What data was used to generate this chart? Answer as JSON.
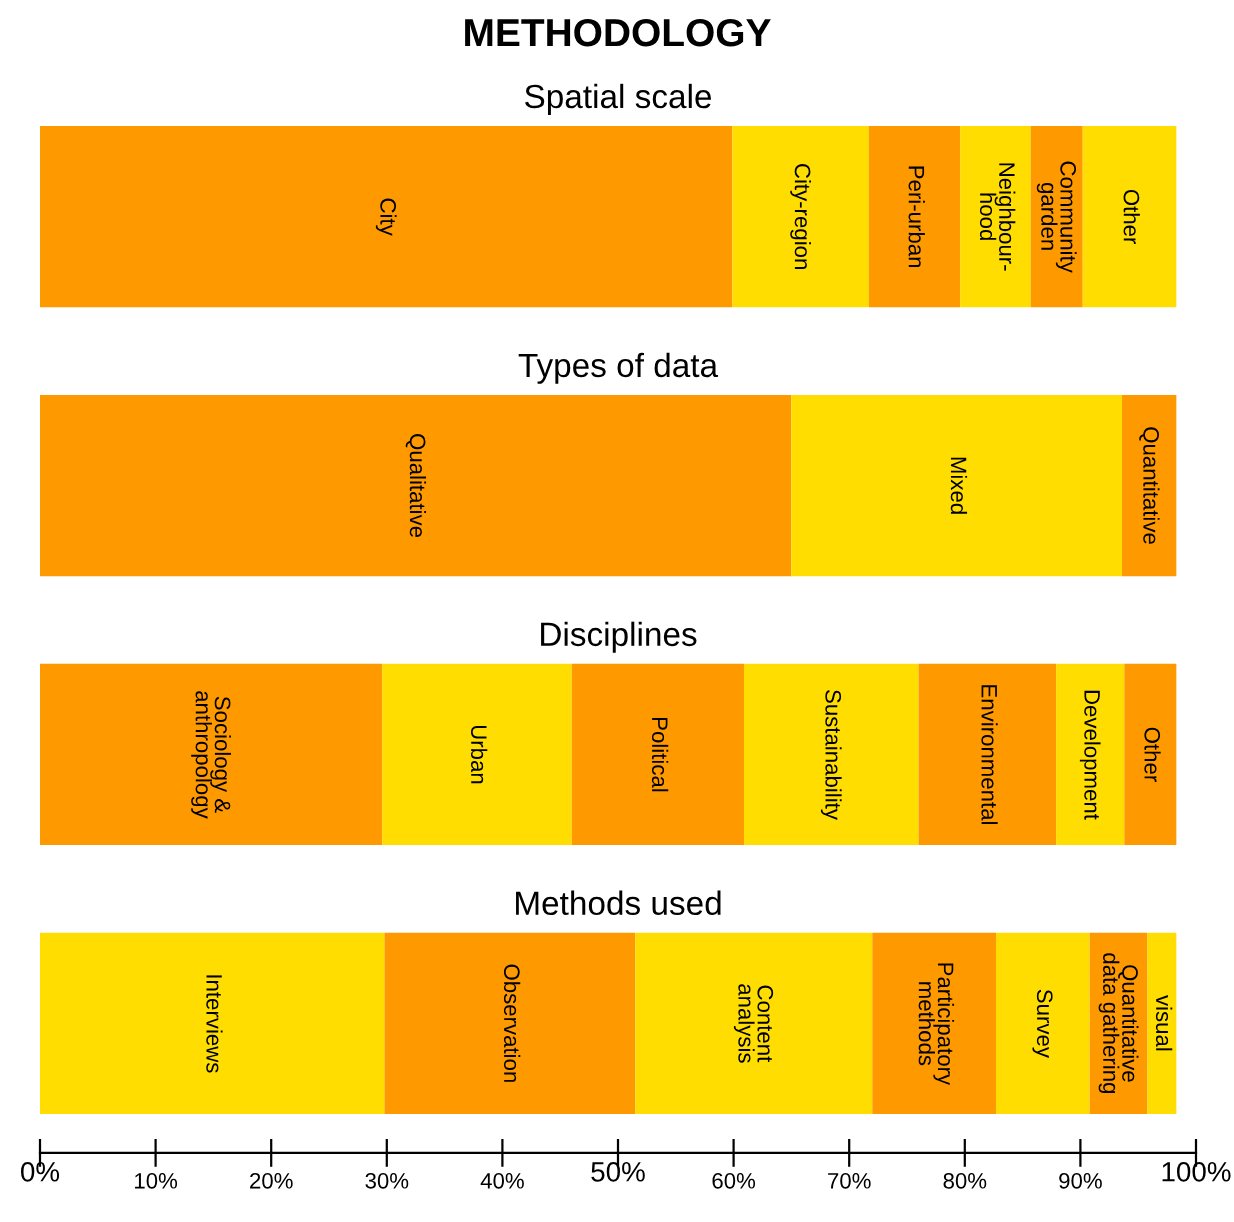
{
  "chart_data": {
    "type": "bar",
    "title": "METHODOLOGY",
    "orientation": "horizontal",
    "stacked": true,
    "categories": [
      null,
      null,
      null,
      null
    ],
    "annotations": [
      "Spatial scale",
      "Types of data",
      "Disciplines",
      "Methods used"
    ],
    "xlim": [
      0,
      100
    ],
    "xticks": [
      {
        "value": 0,
        "label": "0%"
      },
      {
        "value": 10,
        "label": "10%"
      },
      {
        "value": 20,
        "label": "20%"
      },
      {
        "value": 30,
        "label": "30%"
      },
      {
        "value": 40,
        "label": "40%"
      },
      {
        "value": 50,
        "label": "50%"
      },
      {
        "value": 60,
        "label": "60%"
      },
      {
        "value": 70,
        "label": "70%"
      },
      {
        "value": 80,
        "label": "80%"
      },
      {
        "value": 90,
        "label": "90%"
      },
      {
        "value": 100,
        "label": "100%"
      }
    ],
    "series": [
      {
        "name": "City",
        "color": "#ff9900",
        "values": [
          59.9,
          null,
          null,
          null
        ]
      },
      {
        "name": "City-region",
        "color": "#ffdd00",
        "values": [
          11.8,
          null,
          null,
          null
        ]
      },
      {
        "name": "Peri-urban",
        "color": "#ff9900",
        "values": [
          7.9,
          null,
          null,
          null
        ]
      },
      {
        "name": "Neighbour-\nhood",
        "color": "#ffdd00",
        "values": [
          6.1,
          null,
          null,
          null
        ]
      },
      {
        "name": "Community\ngarden",
        "color": "#ff9900",
        "values": [
          4.5,
          null,
          null,
          null
        ]
      },
      {
        "name": "Other",
        "color": "#ffdd00",
        "values": [
          8.1,
          null,
          null,
          null
        ]
      },
      {
        "name": "Qualitative",
        "color": "#ff9900",
        "values": [
          null,
          65.0,
          null,
          null
        ]
      },
      {
        "name": "Mixed",
        "color": "#ffdd00",
        "values": [
          null,
          28.6,
          null,
          null
        ]
      },
      {
        "name": "Quantitative",
        "color": "#ff9900",
        "values": [
          null,
          4.7,
          null,
          null
        ]
      },
      {
        "name": "Sociology &\nanthropology",
        "color": "#ff9900",
        "values": [
          null,
          null,
          29.6,
          null
        ]
      },
      {
        "name": "Urban",
        "color": "#ffdd00",
        "values": [
          null,
          null,
          16.4,
          null
        ]
      },
      {
        "name": "Political",
        "color": "#ff9900",
        "values": [
          null,
          null,
          14.9,
          null
        ]
      },
      {
        "name": "Sustainability",
        "color": "#ffdd00",
        "values": [
          null,
          null,
          15.1,
          null
        ]
      },
      {
        "name": "Environmental",
        "color": "#ff9900",
        "values": [
          null,
          null,
          11.9,
          null
        ]
      },
      {
        "name": "Development",
        "color": "#ffdd00",
        "values": [
          null,
          null,
          5.9,
          null
        ]
      },
      {
        "name": "Other",
        "color": "#ff9900",
        "values": [
          null,
          null,
          4.5,
          null
        ]
      },
      {
        "name": "Interviews",
        "color": "#ffdd00",
        "values": [
          null,
          null,
          null,
          29.8
        ]
      },
      {
        "name": "Observation",
        "color": "#ff9900",
        "values": [
          null,
          null,
          null,
          21.7
        ]
      },
      {
        "name": "Content\nanalysis",
        "color": "#ffdd00",
        "values": [
          null,
          null,
          null,
          20.5
        ]
      },
      {
        "name": "Participatory\nmethods",
        "color": "#ff9900",
        "values": [
          null,
          null,
          null,
          10.7
        ]
      },
      {
        "name": "Survey",
        "color": "#ffdd00",
        "values": [
          null,
          null,
          null,
          8.1
        ]
      },
      {
        "name": "Quantitative\ndata gathering",
        "color": "#ff9900",
        "values": [
          null,
          null,
          null,
          5.0
        ]
      },
      {
        "name": "visual",
        "color": "#ffdd00",
        "values": [
          null,
          null,
          null,
          2.5
        ]
      }
    ]
  }
}
